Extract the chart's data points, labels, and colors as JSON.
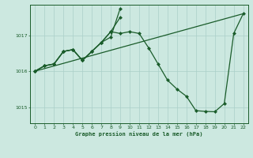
{
  "title": "Graphe pression niveau de la mer (hPa)",
  "bg_color": "#cce8e0",
  "line_color": "#1a5c2a",
  "grid_color": "#aacfc8",
  "xlim": [
    -0.5,
    22.5
  ],
  "ylim": [
    1014.55,
    1017.85
  ],
  "yticks": [
    1015,
    1016,
    1017
  ],
  "xticks": [
    0,
    1,
    2,
    3,
    4,
    5,
    6,
    7,
    8,
    9,
    10,
    11,
    12,
    13,
    14,
    15,
    16,
    17,
    18,
    19,
    20,
    21,
    22
  ],
  "series_main": {
    "x": [
      0,
      1,
      2,
      3,
      4,
      5,
      6,
      7,
      8,
      9,
      10,
      11,
      12,
      13,
      14,
      15,
      16,
      17,
      18,
      19,
      20,
      21,
      22
    ],
    "y": [
      1016.0,
      1016.15,
      1016.2,
      1016.55,
      1016.6,
      1016.3,
      1016.55,
      1016.8,
      1017.1,
      1017.05,
      1017.1,
      1017.05,
      1016.65,
      1016.2,
      1015.75,
      1015.5,
      1015.3,
      1014.9,
      1014.88,
      1014.87,
      1015.1,
      1017.05,
      1017.6
    ]
  },
  "series_short1": {
    "x": [
      0,
      1,
      2,
      3,
      4,
      5,
      6,
      7,
      8,
      9
    ],
    "y": [
      1016.0,
      1016.15,
      1016.2,
      1016.55,
      1016.6,
      1016.3,
      1016.55,
      1016.8,
      1017.1,
      1017.5
    ]
  },
  "series_short2": {
    "x": [
      0,
      1,
      2,
      3,
      4,
      5,
      6,
      7,
      8,
      9
    ],
    "y": [
      1016.0,
      1016.15,
      1016.2,
      1016.55,
      1016.6,
      1016.3,
      1016.55,
      1016.8,
      1016.95,
      1017.75
    ]
  },
  "series_diagonal": {
    "x": [
      0,
      22
    ],
    "y": [
      1016.0,
      1017.6
    ]
  }
}
